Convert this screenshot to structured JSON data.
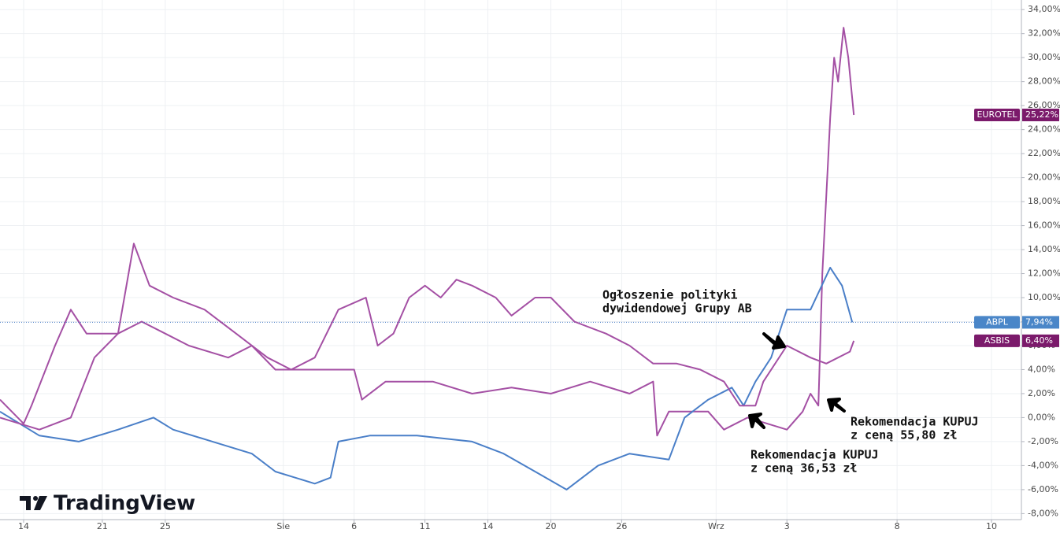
{
  "chart_data": {
    "type": "line",
    "brand": "TradingView",
    "annotations": [
      "Ogłoszenie polityki",
      "dywidendowej Grupy AB",
      "Rekomendacja KUPUJ",
      "z ceną 36,53 zł",
      "Rekomendacja KUPUJ",
      "z ceną 55,80 zł"
    ],
    "xlim": [
      -1.5,
      63.4
    ],
    "xticks": [
      {
        "value": 0,
        "label": "14"
      },
      {
        "value": 5,
        "label": "21"
      },
      {
        "value": 9,
        "label": "25"
      },
      {
        "value": 16.5,
        "label": "Sie"
      },
      {
        "value": 21,
        "label": "6"
      },
      {
        "value": 25.5,
        "label": "11"
      },
      {
        "value": 29.5,
        "label": "14"
      },
      {
        "value": 33.5,
        "label": "20"
      },
      {
        "value": 38,
        "label": "26"
      },
      {
        "value": 44,
        "label": "Wrz"
      },
      {
        "value": 48.5,
        "label": "3"
      },
      {
        "value": 55.5,
        "label": "8"
      },
      {
        "value": 61.5,
        "label": "10"
      }
    ],
    "ylim": [
      -8.5,
      34.8
    ],
    "yticks": [
      {
        "value": -8,
        "label": "-8,00%"
      },
      {
        "value": -6,
        "label": "-6,00%"
      },
      {
        "value": -4,
        "label": "-4,00%"
      },
      {
        "value": -2,
        "label": "-2,00%"
      },
      {
        "value": 0,
        "label": "0,00%"
      },
      {
        "value": 2,
        "label": "2,00%"
      },
      {
        "value": 4,
        "label": "4,00%"
      },
      {
        "value": 6,
        "label": "6,00%"
      },
      {
        "value": 8,
        "label": "8,00%"
      },
      {
        "value": 10,
        "label": "10,00%"
      },
      {
        "value": 12,
        "label": "12,00%"
      },
      {
        "value": 14,
        "label": "14,00%"
      },
      {
        "value": 16,
        "label": "16,00%"
      },
      {
        "value": 18,
        "label": "18,00%"
      },
      {
        "value": 20,
        "label": "20,00%"
      },
      {
        "value": 22,
        "label": "22,00%"
      },
      {
        "value": 24,
        "label": "24,00%"
      },
      {
        "value": 26,
        "label": "26,00%"
      },
      {
        "value": 28,
        "label": "28,00%"
      },
      {
        "value": 30,
        "label": "30,00%"
      },
      {
        "value": 32,
        "label": "32,00%"
      },
      {
        "value": 34,
        "label": "34,00%"
      }
    ],
    "grid": true,
    "series": [
      {
        "name": "EUROTEL",
        "color": "#a450a4",
        "badge_color": "#7b1a6b",
        "end_label": "25,22%",
        "x": [
          -1.5,
          0,
          0.5,
          2,
          3,
          4,
          6,
          7.5,
          9,
          10.5,
          13,
          14.5,
          16,
          18.5,
          21,
          21.5,
          23,
          26,
          28.5,
          31,
          33.5,
          36,
          38.5,
          40,
          40.25,
          41,
          43.5,
          44.5,
          46,
          48.5,
          49.5,
          50,
          50.5,
          50.75,
          51.1,
          51.25,
          51.5,
          51.75,
          52.1,
          52.4,
          52.75
        ],
        "values": [
          1.5,
          -0.5,
          1,
          6,
          9,
          7,
          7,
          8,
          7,
          6,
          5,
          6,
          4,
          4,
          4,
          1.5,
          3,
          3,
          2,
          2.5,
          2,
          3,
          2,
          3,
          -1.5,
          0.5,
          0.5,
          -1,
          0,
          -1,
          0.5,
          2,
          1,
          12,
          21,
          25,
          30,
          28,
          32.5,
          30,
          25.22
        ]
      },
      {
        "name": "ABPL",
        "color": "#4a7fc8",
        "badge_color": "#4a86c8",
        "end_label": "7,94%",
        "price_line": true,
        "x": [
          -1.5,
          1,
          3.5,
          6,
          8.25,
          9.5,
          12,
          14.5,
          16,
          18.5,
          19.5,
          20,
          22,
          25,
          28.5,
          30.5,
          32.5,
          34.5,
          36.5,
          38.5,
          41,
          42,
          43.5,
          45,
          45.75,
          46.5,
          47.5,
          48.5,
          50,
          51.25,
          52,
          52.65
        ],
        "values": [
          0.5,
          -1.5,
          -2,
          -1,
          0,
          -1,
          -2,
          -3,
          -4.5,
          -5.5,
          -5,
          -2,
          -1.5,
          -1.5,
          -2,
          -3,
          -4.5,
          -6,
          -4,
          -3,
          -3.5,
          0,
          1.5,
          2.5,
          1,
          3,
          5,
          9,
          9,
          12.5,
          11,
          7.94
        ]
      },
      {
        "name": "ASBIS",
        "color": "#a450a4",
        "badge_color": "#7b1a6b",
        "end_label": "6,40%",
        "x": [
          -1.5,
          1,
          3,
          4.5,
          6,
          7,
          8,
          9.5,
          11.5,
          13.5,
          15.5,
          17,
          18.5,
          20,
          21.75,
          22.5,
          23.5,
          24.5,
          25.5,
          26.5,
          27.5,
          28.5,
          30,
          31,
          32.5,
          33.5,
          35,
          37,
          38.5,
          40,
          41.5,
          43,
          44.5,
          45.5,
          46.5,
          47,
          48.5,
          50,
          51,
          52.5,
          52.75
        ],
        "values": [
          0,
          -1,
          0,
          5,
          7,
          14.5,
          11,
          10,
          9,
          7,
          5,
          4,
          5,
          9,
          10,
          6,
          7,
          10,
          11,
          10,
          11.5,
          11,
          10,
          8.5,
          10,
          10,
          8,
          7,
          6,
          4.5,
          4.5,
          4,
          3,
          1,
          1,
          3,
          6,
          5,
          4.5,
          5.5,
          6.4
        ]
      }
    ]
  }
}
